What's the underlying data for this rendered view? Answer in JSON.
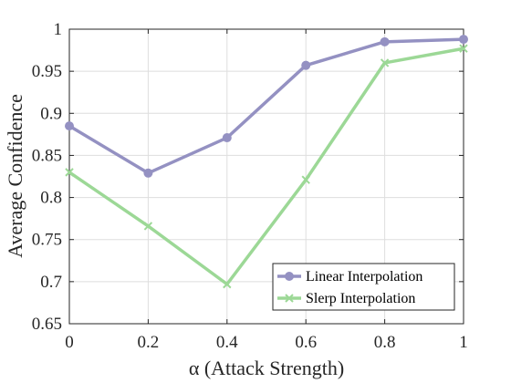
{
  "chart_data": {
    "type": "line",
    "x": [
      0,
      0.2,
      0.4,
      0.6,
      0.8,
      1
    ],
    "series": [
      {
        "name": "Linear Interpolation",
        "values": [
          0.885,
          0.829,
          0.871,
          0.957,
          0.985,
          0.988
        ],
        "color": "#9491c2",
        "marker": "circle"
      },
      {
        "name": "Slerp Interpolation",
        "values": [
          0.83,
          0.766,
          0.697,
          0.821,
          0.96,
          0.977
        ],
        "color": "#9cd896",
        "marker": "x"
      }
    ],
    "xlabel": "α (Attack Strength)",
    "ylabel": "Average Confidence",
    "xlim": [
      0,
      1
    ],
    "ylim": [
      0.65,
      1
    ],
    "xticks": [
      0,
      0.2,
      0.4,
      0.6,
      0.8,
      1
    ],
    "xtick_labels": [
      "0",
      "0.2",
      "0.4",
      "0.6",
      "0.8",
      "1"
    ],
    "yticks": [
      0.65,
      0.7,
      0.75,
      0.8,
      0.85,
      0.9,
      0.95,
      1
    ],
    "ytick_labels": [
      "0.65",
      "0.7",
      "0.75",
      "0.8",
      "0.85",
      "0.9",
      "0.95",
      "1"
    ],
    "grid": true,
    "legend_position": "bottom-right"
  }
}
